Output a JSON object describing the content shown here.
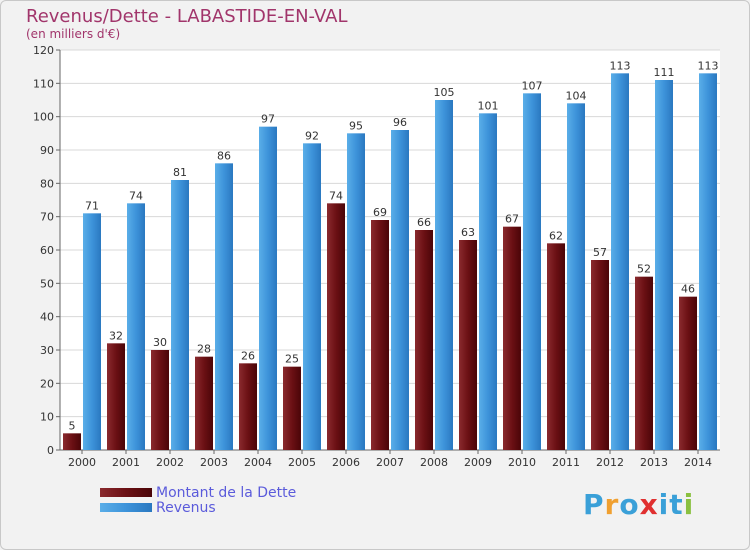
{
  "chart_data": {
    "type": "bar",
    "title": "Revenus/Dette - LABASTIDE-EN-VAL",
    "subtitle": "(en milliers d'€)",
    "categories": [
      "2000",
      "2001",
      "2002",
      "2003",
      "2004",
      "2005",
      "2006",
      "2007",
      "2008",
      "2009",
      "2010",
      "2011",
      "2012",
      "2013",
      "2014"
    ],
    "series": [
      {
        "name": "Montant de la Dette",
        "color": "#6b0f12",
        "values": [
          5,
          32,
          30,
          28,
          26,
          25,
          74,
          69,
          66,
          63,
          67,
          62,
          57,
          52,
          46
        ]
      },
      {
        "name": "Revenus",
        "color": "#3a8fd8",
        "values": [
          71,
          74,
          81,
          86,
          97,
          92,
          95,
          96,
          105,
          101,
          107,
          104,
          113,
          111,
          113
        ]
      }
    ],
    "ylim": [
      0,
      120
    ],
    "yticks": [
      0,
      10,
      20,
      30,
      40,
      50,
      60,
      70,
      80,
      90,
      100,
      110,
      120
    ],
    "grid": true,
    "legend_position": "bottom-left"
  },
  "logo": {
    "text": "Proxiti",
    "letters": [
      "P",
      "r",
      "o",
      "x",
      "i",
      "t",
      "i"
    ],
    "colors": [
      "#3aa0d8",
      "#f0a030",
      "#3aa0d8",
      "#e03030",
      "#3aa0d8",
      "#3aa0d8",
      "#8ac040"
    ]
  }
}
